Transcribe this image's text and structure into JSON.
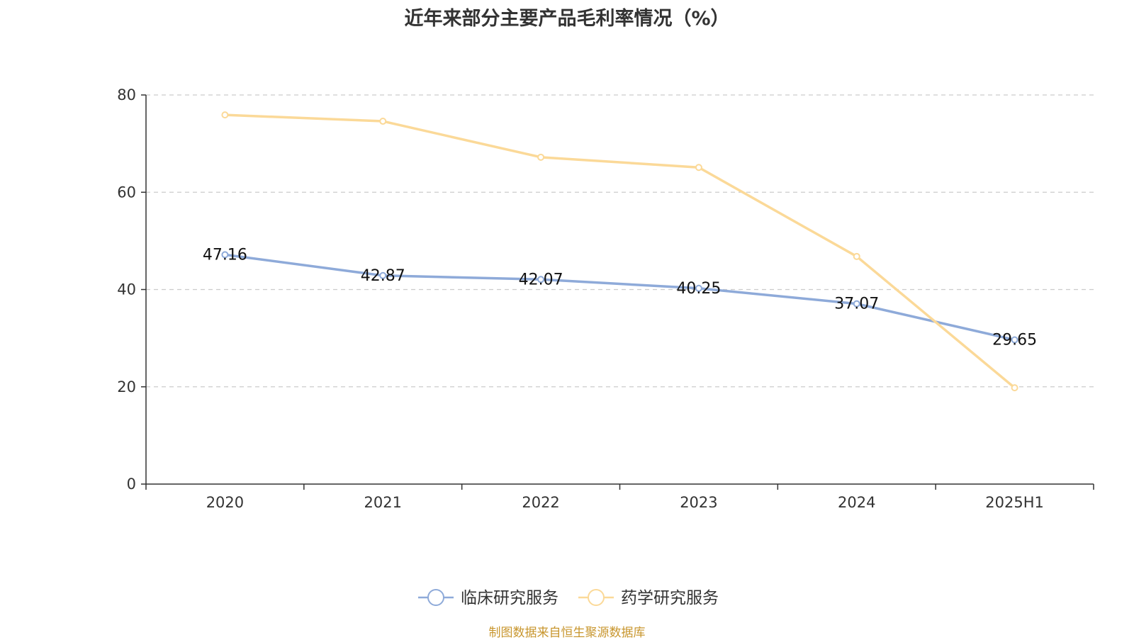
{
  "chart_data": {
    "type": "line",
    "title": "近年来部分主要产品毛利率情况（%）",
    "categories": [
      "2020",
      "2021",
      "2022",
      "2023",
      "2024",
      "2025H1"
    ],
    "ylim": [
      0,
      80
    ],
    "yticks": [
      0,
      20,
      40,
      60,
      80
    ],
    "grid": "horizontal dashed",
    "legend_position": "bottom",
    "series": [
      {
        "name": "临床研究服务",
        "color": "#8eaad9",
        "values": [
          47.16,
          42.87,
          42.07,
          40.25,
          37.07,
          29.65
        ],
        "labels": [
          "47.16",
          "42.87",
          "42.07",
          "40.25",
          "37.07",
          "29.65"
        ]
      },
      {
        "name": "药学研究服务",
        "color": "#fbd998",
        "values": [
          75.9,
          74.6,
          67.2,
          65.1,
          46.8,
          19.8
        ]
      }
    ]
  },
  "source": "制图数据来自恒生聚源数据库"
}
